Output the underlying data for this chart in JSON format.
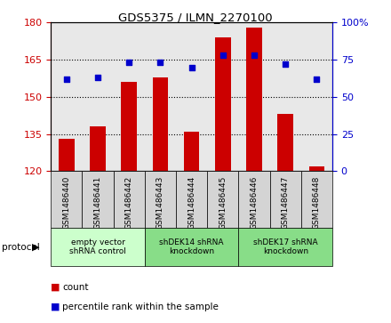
{
  "title": "GDS5375 / ILMN_2270100",
  "samples": [
    "GSM1486440",
    "GSM1486441",
    "GSM1486442",
    "GSM1486443",
    "GSM1486444",
    "GSM1486445",
    "GSM1486446",
    "GSM1486447",
    "GSM1486448"
  ],
  "counts": [
    133,
    138,
    156,
    158,
    136,
    174,
    178,
    143,
    122
  ],
  "percentiles": [
    62,
    63,
    73,
    73,
    70,
    78,
    78,
    72,
    62
  ],
  "ylim_left": [
    120,
    180
  ],
  "ylim_right": [
    0,
    100
  ],
  "yticks_left": [
    120,
    135,
    150,
    165,
    180
  ],
  "yticks_right": [
    0,
    25,
    50,
    75,
    100
  ],
  "bar_color": "#cc0000",
  "dot_color": "#0000cc",
  "groups": [
    {
      "label": "empty vector\nshRNA control",
      "start": 0,
      "end": 3,
      "color": "#ccffcc"
    },
    {
      "label": "shDEK14 shRNA\nknockdown",
      "start": 3,
      "end": 6,
      "color": "#88dd88"
    },
    {
      "label": "shDEK17 shRNA\nknockdown",
      "start": 6,
      "end": 9,
      "color": "#88dd88"
    }
  ],
  "protocol_label": "protocol",
  "background_color": "#ffffff",
  "tick_label_color_left": "#cc0000",
  "tick_label_color_right": "#0000cc",
  "bar_width": 0.5,
  "plot_bg": "#e8e8e8",
  "sample_box_bg": "#d4d4d4"
}
